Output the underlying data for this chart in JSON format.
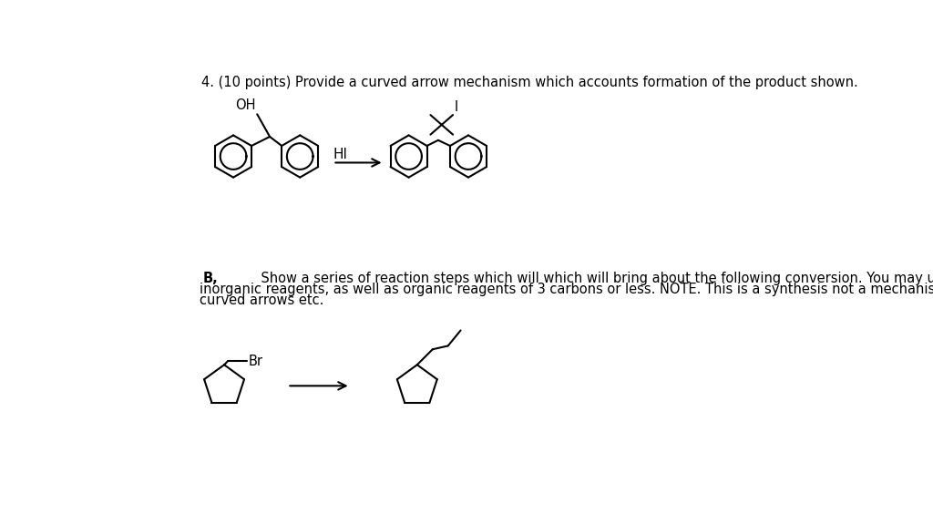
{
  "bg_color": "#ffffff",
  "text_color": "#000000",
  "title": "4. (10 points) Provide a curved arrow mechanism which accounts formation of the product shown.",
  "title_fontsize": 10.5,
  "part_b_label": "B,",
  "part_b_line1": "       Show a series of reaction steps which will which will bring about the following conversion. You may use any",
  "part_b_line2": "inorganic reagents, as well as organic reagents of 3 carbons or less. NOTE. This is a synthesis not a mechanism. NO",
  "part_b_line3": "curved arrows etc.",
  "part_b_fontsize": 10.5,
  "line_width": 1.5,
  "line_color": "#000000",
  "hi_label": "HI",
  "i_label": "I",
  "oh_label": "OH",
  "br_label": "Br"
}
